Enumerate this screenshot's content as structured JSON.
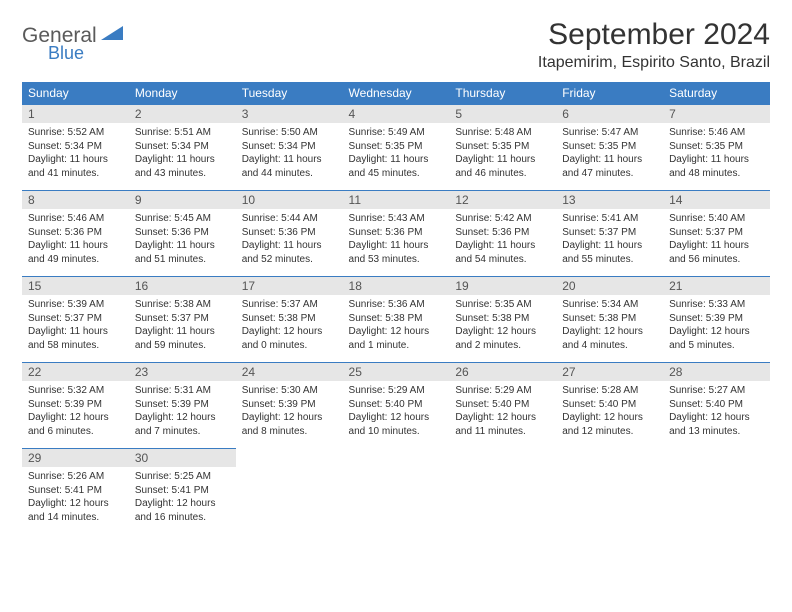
{
  "brand": {
    "name1": "General",
    "name2": "Blue",
    "accent": "#3a7cc2",
    "text_color": "#5a5a5a"
  },
  "title": "September 2024",
  "location": "Itapemirim, Espirito Santo, Brazil",
  "headers": [
    "Sunday",
    "Monday",
    "Tuesday",
    "Wednesday",
    "Thursday",
    "Friday",
    "Saturday"
  ],
  "colors": {
    "header_bg": "#3a7cc2",
    "header_fg": "#ffffff",
    "daynum_bg": "#e6e6e6",
    "row_border": "#3a7cc2",
    "text": "#333333"
  },
  "fonts": {
    "title_size": 30,
    "location_size": 16,
    "header_size": 12,
    "daynum_size": 12,
    "body_size": 10
  },
  "days": [
    {
      "n": "1",
      "sunrise": "5:52 AM",
      "sunset": "5:34 PM",
      "daylight": "11 hours and 41 minutes."
    },
    {
      "n": "2",
      "sunrise": "5:51 AM",
      "sunset": "5:34 PM",
      "daylight": "11 hours and 43 minutes."
    },
    {
      "n": "3",
      "sunrise": "5:50 AM",
      "sunset": "5:34 PM",
      "daylight": "11 hours and 44 minutes."
    },
    {
      "n": "4",
      "sunrise": "5:49 AM",
      "sunset": "5:35 PM",
      "daylight": "11 hours and 45 minutes."
    },
    {
      "n": "5",
      "sunrise": "5:48 AM",
      "sunset": "5:35 PM",
      "daylight": "11 hours and 46 minutes."
    },
    {
      "n": "6",
      "sunrise": "5:47 AM",
      "sunset": "5:35 PM",
      "daylight": "11 hours and 47 minutes."
    },
    {
      "n": "7",
      "sunrise": "5:46 AM",
      "sunset": "5:35 PM",
      "daylight": "11 hours and 48 minutes."
    },
    {
      "n": "8",
      "sunrise": "5:46 AM",
      "sunset": "5:36 PM",
      "daylight": "11 hours and 49 minutes."
    },
    {
      "n": "9",
      "sunrise": "5:45 AM",
      "sunset": "5:36 PM",
      "daylight": "11 hours and 51 minutes."
    },
    {
      "n": "10",
      "sunrise": "5:44 AM",
      "sunset": "5:36 PM",
      "daylight": "11 hours and 52 minutes."
    },
    {
      "n": "11",
      "sunrise": "5:43 AM",
      "sunset": "5:36 PM",
      "daylight": "11 hours and 53 minutes."
    },
    {
      "n": "12",
      "sunrise": "5:42 AM",
      "sunset": "5:36 PM",
      "daylight": "11 hours and 54 minutes."
    },
    {
      "n": "13",
      "sunrise": "5:41 AM",
      "sunset": "5:37 PM",
      "daylight": "11 hours and 55 minutes."
    },
    {
      "n": "14",
      "sunrise": "5:40 AM",
      "sunset": "5:37 PM",
      "daylight": "11 hours and 56 minutes."
    },
    {
      "n": "15",
      "sunrise": "5:39 AM",
      "sunset": "5:37 PM",
      "daylight": "11 hours and 58 minutes."
    },
    {
      "n": "16",
      "sunrise": "5:38 AM",
      "sunset": "5:37 PM",
      "daylight": "11 hours and 59 minutes."
    },
    {
      "n": "17",
      "sunrise": "5:37 AM",
      "sunset": "5:38 PM",
      "daylight": "12 hours and 0 minutes."
    },
    {
      "n": "18",
      "sunrise": "5:36 AM",
      "sunset": "5:38 PM",
      "daylight": "12 hours and 1 minute."
    },
    {
      "n": "19",
      "sunrise": "5:35 AM",
      "sunset": "5:38 PM",
      "daylight": "12 hours and 2 minutes."
    },
    {
      "n": "20",
      "sunrise": "5:34 AM",
      "sunset": "5:38 PM",
      "daylight": "12 hours and 4 minutes."
    },
    {
      "n": "21",
      "sunrise": "5:33 AM",
      "sunset": "5:39 PM",
      "daylight": "12 hours and 5 minutes."
    },
    {
      "n": "22",
      "sunrise": "5:32 AM",
      "sunset": "5:39 PM",
      "daylight": "12 hours and 6 minutes."
    },
    {
      "n": "23",
      "sunrise": "5:31 AM",
      "sunset": "5:39 PM",
      "daylight": "12 hours and 7 minutes."
    },
    {
      "n": "24",
      "sunrise": "5:30 AM",
      "sunset": "5:39 PM",
      "daylight": "12 hours and 8 minutes."
    },
    {
      "n": "25",
      "sunrise": "5:29 AM",
      "sunset": "5:40 PM",
      "daylight": "12 hours and 10 minutes."
    },
    {
      "n": "26",
      "sunrise": "5:29 AM",
      "sunset": "5:40 PM",
      "daylight": "12 hours and 11 minutes."
    },
    {
      "n": "27",
      "sunrise": "5:28 AM",
      "sunset": "5:40 PM",
      "daylight": "12 hours and 12 minutes."
    },
    {
      "n": "28",
      "sunrise": "5:27 AM",
      "sunset": "5:40 PM",
      "daylight": "12 hours and 13 minutes."
    },
    {
      "n": "29",
      "sunrise": "5:26 AM",
      "sunset": "5:41 PM",
      "daylight": "12 hours and 14 minutes."
    },
    {
      "n": "30",
      "sunrise": "5:25 AM",
      "sunset": "5:41 PM",
      "daylight": "12 hours and 16 minutes."
    }
  ],
  "labels": {
    "sunrise": "Sunrise: ",
    "sunset": "Sunset: ",
    "daylight": "Daylight: "
  }
}
